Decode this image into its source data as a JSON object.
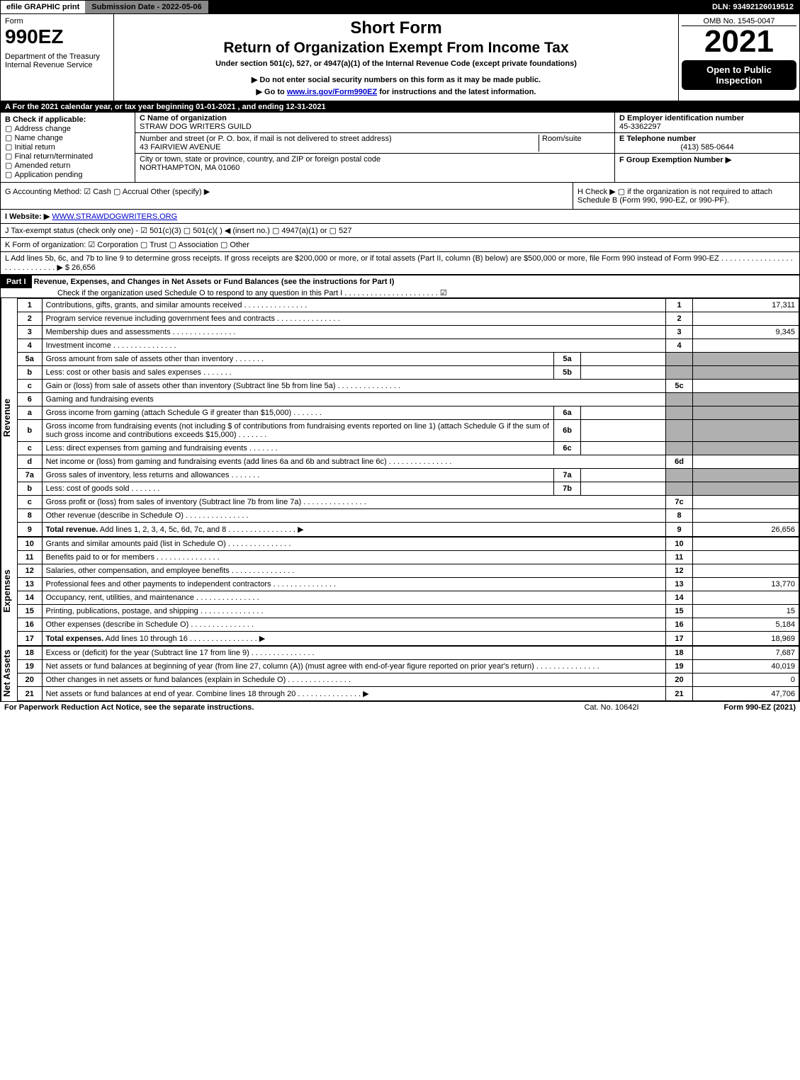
{
  "topbar": {
    "efile": "efile GRAPHIC print",
    "subdate": "Submission Date - 2022-05-06",
    "dln": "DLN: 93492126019512"
  },
  "header": {
    "form_label": "Form",
    "form_num": "990EZ",
    "dept": "Department of the Treasury\nInternal Revenue Service",
    "short": "Short Form",
    "title": "Return of Organization Exempt From Income Tax",
    "subtitle": "Under section 501(c), 527, or 4947(a)(1) of the Internal Revenue Code (except private foundations)",
    "note1": "▶ Do not enter social security numbers on this form as it may be made public.",
    "note2_pre": "▶ Go to ",
    "note2_link": "www.irs.gov/Form990EZ",
    "note2_post": " for instructions and the latest information.",
    "omb": "OMB No. 1545-0047",
    "year": "2021",
    "open": "Open to Public Inspection"
  },
  "A": "A  For the 2021 calendar year, or tax year beginning 01-01-2021 , and ending 12-31-2021",
  "B": {
    "label": "B  Check if applicable:",
    "items": [
      "Address change",
      "Name change",
      "Initial return",
      "Final return/terminated",
      "Amended return",
      "Application pending"
    ]
  },
  "C": {
    "name_lbl": "C Name of organization",
    "name": "STRAW DOG WRITERS GUILD",
    "street_lbl": "Number and street (or P. O. box, if mail is not delivered to street address)",
    "room_lbl": "Room/suite",
    "street": "43 FAIRVIEW AVENUE",
    "city_lbl": "City or town, state or province, country, and ZIP or foreign postal code",
    "city": "NORTHAMPTON, MA  01060"
  },
  "D": {
    "lbl": "D Employer identification number",
    "val": "45-3362297"
  },
  "E": {
    "lbl": "E Telephone number",
    "val": "(413) 585-0644"
  },
  "F": {
    "lbl": "F Group Exemption Number  ▶",
    "val": ""
  },
  "G": "G Accounting Method:   ☑ Cash   ▢ Accrual   Other (specify) ▶",
  "H": "H   Check ▶  ▢ if the organization is not required to attach Schedule B (Form 990, 990-EZ, or 990-PF).",
  "I": {
    "lbl": "I Website: ▶",
    "val": "WWW.STRAWDOGWRITERS.ORG"
  },
  "J": "J Tax-exempt status (check only one) - ☑ 501(c)(3)  ▢ 501(c)(  ) ◀ (insert no.)  ▢ 4947(a)(1) or  ▢ 527",
  "K": "K Form of organization:  ☑ Corporation   ▢ Trust   ▢ Association   ▢ Other",
  "L": {
    "text": "L Add lines 5b, 6c, and 7b to line 9 to determine gross receipts. If gross receipts are $200,000 or more, or if total assets (Part II, column (B) below) are $500,000 or more, file Form 990 instead of Form 990-EZ",
    "val": "▶ $ 26,656"
  },
  "part1": {
    "hdr": "Part I",
    "title": "Revenue, Expenses, and Changes in Net Assets or Fund Balances (see the instructions for Part I)",
    "check": "Check if the organization used Schedule O to respond to any question in this Part I"
  },
  "rev": [
    {
      "n": "1",
      "d": "Contributions, gifts, grants, and similar amounts received",
      "r": "1",
      "v": "17,311"
    },
    {
      "n": "2",
      "d": "Program service revenue including government fees and contracts",
      "r": "2",
      "v": ""
    },
    {
      "n": "3",
      "d": "Membership dues and assessments",
      "r": "3",
      "v": "9,345"
    },
    {
      "n": "4",
      "d": "Investment income",
      "r": "4",
      "v": ""
    },
    {
      "n": "5a",
      "d": "Gross amount from sale of assets other than inventory",
      "m": "5a",
      "mv": "",
      "shade": true
    },
    {
      "n": "b",
      "d": "Less: cost or other basis and sales expenses",
      "m": "5b",
      "mv": "",
      "shade": true
    },
    {
      "n": "c",
      "d": "Gain or (loss) from sale of assets other than inventory (Subtract line 5b from line 5a)",
      "r": "5c",
      "v": ""
    },
    {
      "n": "6",
      "d": "Gaming and fundraising events",
      "shade": true,
      "nocols": true
    },
    {
      "n": "a",
      "d": "Gross income from gaming (attach Schedule G if greater than $15,000)",
      "m": "6a",
      "mv": "",
      "shade": true
    },
    {
      "n": "b",
      "d": "Gross income from fundraising events (not including $                     of contributions from fundraising events reported on line 1) (attach Schedule G if the sum of such gross income and contributions exceeds $15,000)",
      "m": "6b",
      "mv": "",
      "shade": true
    },
    {
      "n": "c",
      "d": "Less: direct expenses from gaming and fundraising events",
      "m": "6c",
      "mv": "",
      "shade": true
    },
    {
      "n": "d",
      "d": "Net income or (loss) from gaming and fundraising events (add lines 6a and 6b and subtract line 6c)",
      "r": "6d",
      "v": ""
    },
    {
      "n": "7a",
      "d": "Gross sales of inventory, less returns and allowances",
      "m": "7a",
      "mv": "",
      "shade": true
    },
    {
      "n": "b",
      "d": "Less: cost of goods sold",
      "m": "7b",
      "mv": "",
      "shade": true
    },
    {
      "n": "c",
      "d": "Gross profit or (loss) from sales of inventory (Subtract line 7b from line 7a)",
      "r": "7c",
      "v": ""
    },
    {
      "n": "8",
      "d": "Other revenue (describe in Schedule O)",
      "r": "8",
      "v": ""
    },
    {
      "n": "9",
      "d": "Total revenue. Add lines 1, 2, 3, 4, 5c, 6d, 7c, and 8",
      "r": "9",
      "v": "26,656",
      "bold": true,
      "arr": true
    }
  ],
  "exp": [
    {
      "n": "10",
      "d": "Grants and similar amounts paid (list in Schedule O)",
      "r": "10",
      "v": ""
    },
    {
      "n": "11",
      "d": "Benefits paid to or for members",
      "r": "11",
      "v": ""
    },
    {
      "n": "12",
      "d": "Salaries, other compensation, and employee benefits",
      "r": "12",
      "v": ""
    },
    {
      "n": "13",
      "d": "Professional fees and other payments to independent contractors",
      "r": "13",
      "v": "13,770"
    },
    {
      "n": "14",
      "d": "Occupancy, rent, utilities, and maintenance",
      "r": "14",
      "v": ""
    },
    {
      "n": "15",
      "d": "Printing, publications, postage, and shipping",
      "r": "15",
      "v": "15"
    },
    {
      "n": "16",
      "d": "Other expenses (describe in Schedule O)",
      "r": "16",
      "v": "5,184"
    },
    {
      "n": "17",
      "d": "Total expenses. Add lines 10 through 16",
      "r": "17",
      "v": "18,969",
      "bold": true,
      "arr": true
    }
  ],
  "net": [
    {
      "n": "18",
      "d": "Excess or (deficit) for the year (Subtract line 17 from line 9)",
      "r": "18",
      "v": "7,687"
    },
    {
      "n": "19",
      "d": "Net assets or fund balances at beginning of year (from line 27, column (A)) (must agree with end-of-year figure reported on prior year's return)",
      "r": "19",
      "v": "40,019"
    },
    {
      "n": "20",
      "d": "Other changes in net assets or fund balances (explain in Schedule O)",
      "r": "20",
      "v": "0"
    },
    {
      "n": "21",
      "d": "Net assets or fund balances at end of year. Combine lines 18 through 20",
      "r": "21",
      "v": "47,706",
      "arr": true
    }
  ],
  "labels": {
    "rev": "Revenue",
    "exp": "Expenses",
    "net": "Net Assets"
  },
  "footer": {
    "left": "For Paperwork Reduction Act Notice, see the separate instructions.",
    "mid": "Cat. No. 10642I",
    "right": "Form 990-EZ (2021)"
  }
}
